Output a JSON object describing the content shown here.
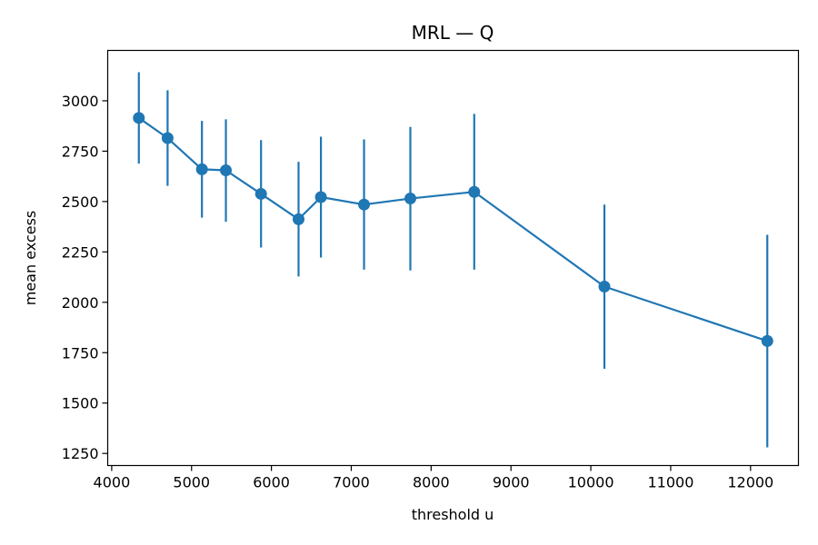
{
  "chart_data": {
    "type": "line",
    "title": "MRL — Q",
    "xlabel": "threshold u",
    "ylabel": "mean excess",
    "xlim": [
      3950,
      12600
    ],
    "ylim": [
      1190,
      3250
    ],
    "xticks": [
      4000,
      5000,
      6000,
      7000,
      8000,
      9000,
      10000,
      11000,
      12000
    ],
    "yticks": [
      1250,
      1500,
      1750,
      2000,
      2250,
      2500,
      2750,
      3000
    ],
    "grid": false,
    "color": "#1f77b4",
    "series": [
      {
        "points": [
          {
            "x": 4340,
            "y": 2915,
            "lo": 2688,
            "hi": 3142
          },
          {
            "x": 4700,
            "y": 2815,
            "lo": 2578,
            "hi": 3052
          },
          {
            "x": 5130,
            "y": 2660,
            "lo": 2420,
            "hi": 2900
          },
          {
            "x": 5430,
            "y": 2655,
            "lo": 2400,
            "hi": 2908
          },
          {
            "x": 5870,
            "y": 2538,
            "lo": 2272,
            "hi": 2805
          },
          {
            "x": 6340,
            "y": 2412,
            "lo": 2128,
            "hi": 2697
          },
          {
            "x": 6620,
            "y": 2522,
            "lo": 2222,
            "hi": 2822
          },
          {
            "x": 7160,
            "y": 2485,
            "lo": 2162,
            "hi": 2808
          },
          {
            "x": 7740,
            "y": 2515,
            "lo": 2158,
            "hi": 2870
          },
          {
            "x": 8540,
            "y": 2548,
            "lo": 2162,
            "hi": 2935
          },
          {
            "x": 10170,
            "y": 2078,
            "lo": 1670,
            "hi": 2485
          },
          {
            "x": 12210,
            "y": 1808,
            "lo": 1280,
            "hi": 2335
          }
        ]
      }
    ]
  }
}
